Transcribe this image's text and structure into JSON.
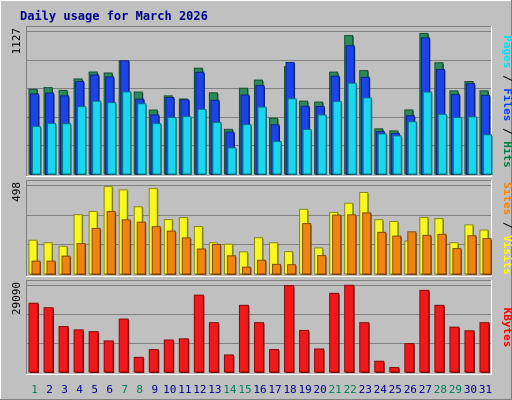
{
  "chart_data": {
    "type": "bar",
    "title": "Daily usage for March 2026",
    "days": [
      "1",
      "2",
      "3",
      "4",
      "5",
      "6",
      "7",
      "8",
      "9",
      "10",
      "11",
      "12",
      "13",
      "14",
      "15",
      "16",
      "17",
      "18",
      "19",
      "20",
      "21",
      "22",
      "23",
      "24",
      "25",
      "26",
      "27",
      "28",
      "29",
      "30",
      "31"
    ],
    "weekend_days": [
      1,
      7,
      8,
      14,
      15,
      21,
      22,
      28,
      29
    ],
    "panels": [
      {
        "max_label": "1127",
        "max": 1127,
        "legend": [
          {
            "text": "Pages",
            "color": "#00E0F8"
          },
          {
            "text": "Files",
            "color": "#0040FF"
          },
          {
            "text": "Hits",
            "color": "#008040"
          }
        ],
        "series": [
          {
            "name": "Hits",
            "color": "#2A8A5A",
            "values": [
              668,
              681,
              659,
              749,
              804,
              796,
              892,
              646,
              504,
              616,
              591,
              834,
              640,
              352,
              676,
              740,
              440,
              846,
              574,
              567,
              803,
              1091,
              815,
              356,
              340,
              505,
              1108,
              877,
              655,
              729,
              656
            ]
          },
          {
            "name": "Files",
            "color": "#1A44E8",
            "values": [
              631,
              638,
              616,
              729,
              780,
              765,
              892,
              590,
              466,
              603,
              584,
              802,
              581,
              330,
              622,
              697,
              388,
              879,
              534,
              532,
              771,
              1011,
              762,
              334,
              320,
              459,
              1073,
              824,
              626,
              712,
              619
            ]
          },
          {
            "name": "Pages",
            "color": "#18D8F0",
            "values": [
              374,
              398,
              396,
              531,
              573,
              562,
              647,
              554,
              397,
              445,
              452,
              509,
              406,
              206,
              389,
              527,
              256,
              593,
              351,
              465,
              571,
              715,
              600,
              316,
              300,
              412,
              645,
              470,
              445,
              450,
              309
            ]
          }
        ]
      },
      {
        "max_label": "498",
        "max": 498,
        "legend": [
          {
            "text": "Sites",
            "color": "#FF8000"
          },
          {
            "text": "Visits",
            "color": "#FFFF00"
          }
        ],
        "series": [
          {
            "name": "Visits",
            "color": "#F8F820",
            "values": [
              189,
              175,
              155,
              332,
              350,
              489,
              471,
              376,
              479,
              305,
              316,
              266,
              175,
              167,
              124,
              203,
              175,
              125,
              362,
              146,
              345,
              396,
              456,
              304,
              294,
              185,
              317,
              310,
              175,
              275,
              246
            ]
          },
          {
            "name": "Sites",
            "color": "#F08410",
            "values": [
              72,
              72,
              100,
              170,
              255,
              350,
              303,
              290,
              265,
              240,
              202,
              140,
              165,
              102,
              38,
              77,
              54,
              52,
              282,
              103,
              329,
              331,
              342,
              233,
              212,
              236,
              216,
              222,
              142,
              214,
              198
            ]
          }
        ]
      },
      {
        "max_label": "29090",
        "max": 29090,
        "legend": [
          {
            "text": "KBytes",
            "color": "#FF0000"
          }
        ],
        "series": [
          {
            "name": "KBytes",
            "color": "#F01818",
            "values": [
              23000,
              21500,
              15200,
              14100,
              13500,
              10400,
              17700,
              4900,
              7500,
              10700,
              11100,
              25700,
              16500,
              5700,
              22300,
              16500,
              7500,
              28900,
              13900,
              7700,
              26300,
              29000,
              16500,
              3600,
              1500,
              9500,
              27300,
              22300,
              15000,
              13800,
              16500
            ]
          }
        ]
      }
    ]
  }
}
